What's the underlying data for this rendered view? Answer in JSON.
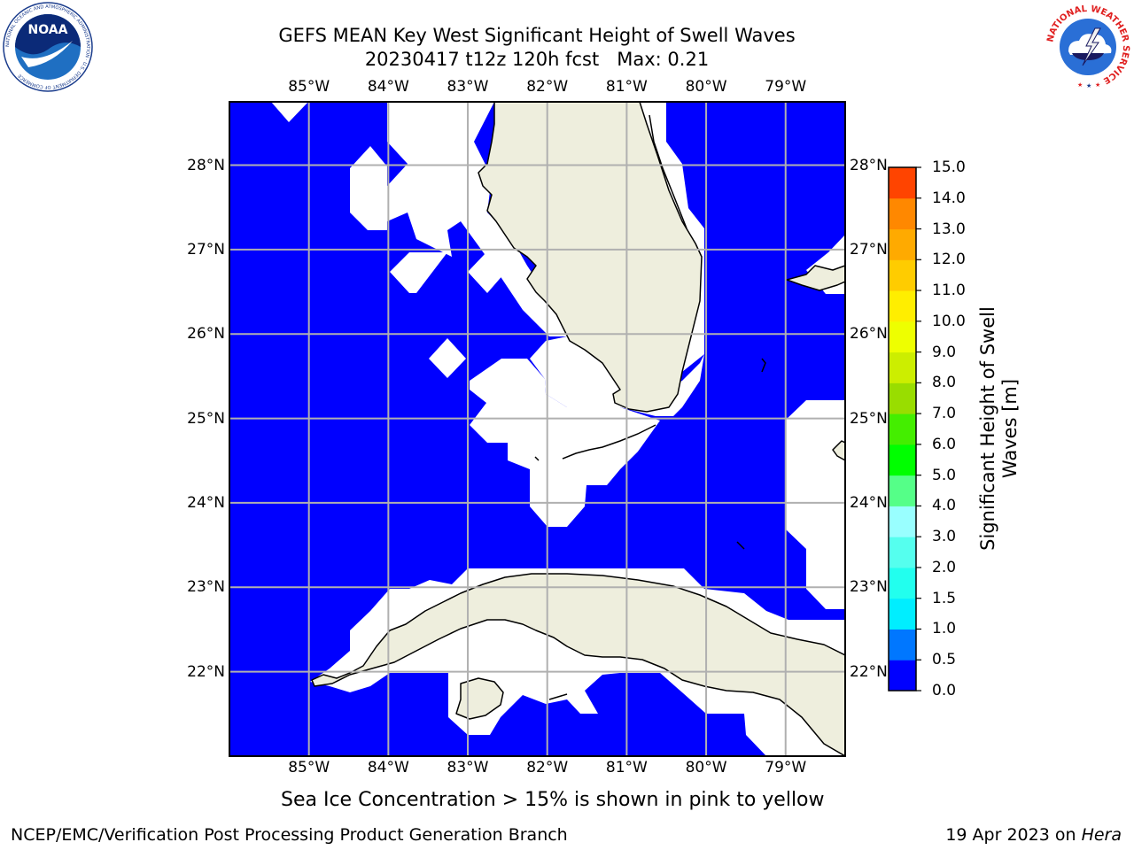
{
  "title": {
    "line1": "GEFS MEAN Key West Significant Height of Swell Waves",
    "line2": "20230417 t12z 120h fcst",
    "max_label": "Max: 0.21"
  },
  "map": {
    "lon_ticks": [
      "85°W",
      "84°W",
      "83°W",
      "82°W",
      "81°W",
      "80°W",
      "79°W"
    ],
    "lat_ticks": [
      "28°N",
      "27°N",
      "26°N",
      "25°N",
      "24°N",
      "23°N",
      "22°N"
    ],
    "lon_range": [
      -86.0,
      -78.25
    ],
    "lat_range": [
      21.0,
      28.75
    ],
    "colors": {
      "sea": "#0000ff",
      "land": "#eeeedd",
      "masked": "#ffffff",
      "grid": "#b0b0b0"
    }
  },
  "colorbar": {
    "label_line1": "Significant Height of Swell",
    "label_line2": "Waves [m]",
    "ticks": [
      "0.0",
      "0.5",
      "1.0",
      "1.5",
      "2.0",
      "3.0",
      "4.0",
      "5.0",
      "6.0",
      "7.0",
      "8.0",
      "9.0",
      "10.0",
      "11.0",
      "12.0",
      "13.0",
      "14.0",
      "15.0"
    ],
    "colors": [
      "#0000ff",
      "#0077ff",
      "#00eeff",
      "#22ffee",
      "#55ffee",
      "#99ffff",
      "#55ff88",
      "#00ff00",
      "#44ee00",
      "#99dd00",
      "#ccee00",
      "#eeff00",
      "#ffee00",
      "#ffcc00",
      "#ffaa00",
      "#ff8800",
      "#ff4400",
      "#ff0000"
    ]
  },
  "footer": {
    "ice_note": "Sea Ice Concentration > 15% is shown in pink to yellow",
    "credit": "NCEP/EMC/Verification Post Processing Product Generation Branch",
    "date": "19 Apr 2023 on",
    "machine": "Hera"
  },
  "logos": {
    "noaa": {
      "text": "NOAA",
      "ring_text": "NATIONAL OCEANIC AND ATMOSPHERIC ADMINISTRATION · U.S. DEPARTMENT OF COMMERCE"
    },
    "nws": {
      "ring_text": "NATIONAL WEATHER SERVICE"
    }
  }
}
